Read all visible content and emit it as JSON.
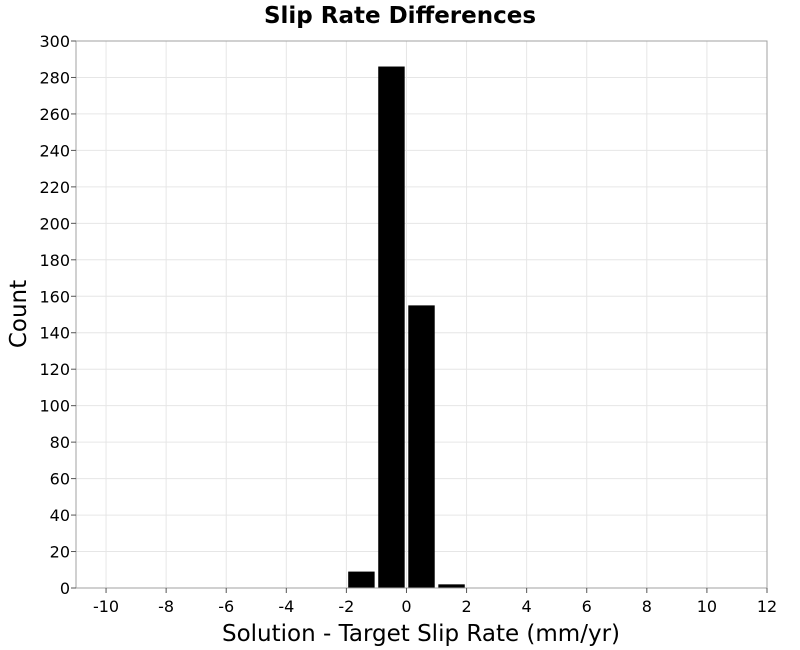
{
  "chart_data": {
    "type": "bar",
    "title": "Slip Rate Differences",
    "xlabel": "Solution - Target Slip Rate (mm/yr)",
    "ylabel": "Count",
    "xlim": [
      -11,
      12
    ],
    "ylim": [
      0,
      300
    ],
    "xticks": [
      -10,
      -8,
      -6,
      -4,
      -2,
      0,
      2,
      4,
      6,
      8,
      10,
      12
    ],
    "yticks": [
      0,
      20,
      40,
      60,
      80,
      100,
      120,
      140,
      160,
      180,
      200,
      220,
      240,
      260,
      280,
      300
    ],
    "grid": true,
    "bar_color": "#000000",
    "bin_width": 1,
    "bins": [
      {
        "x": -1.5,
        "value": 9
      },
      {
        "x": -0.5,
        "value": 286
      },
      {
        "x": 0.5,
        "value": 155
      },
      {
        "x": 1.5,
        "value": 2
      }
    ]
  }
}
